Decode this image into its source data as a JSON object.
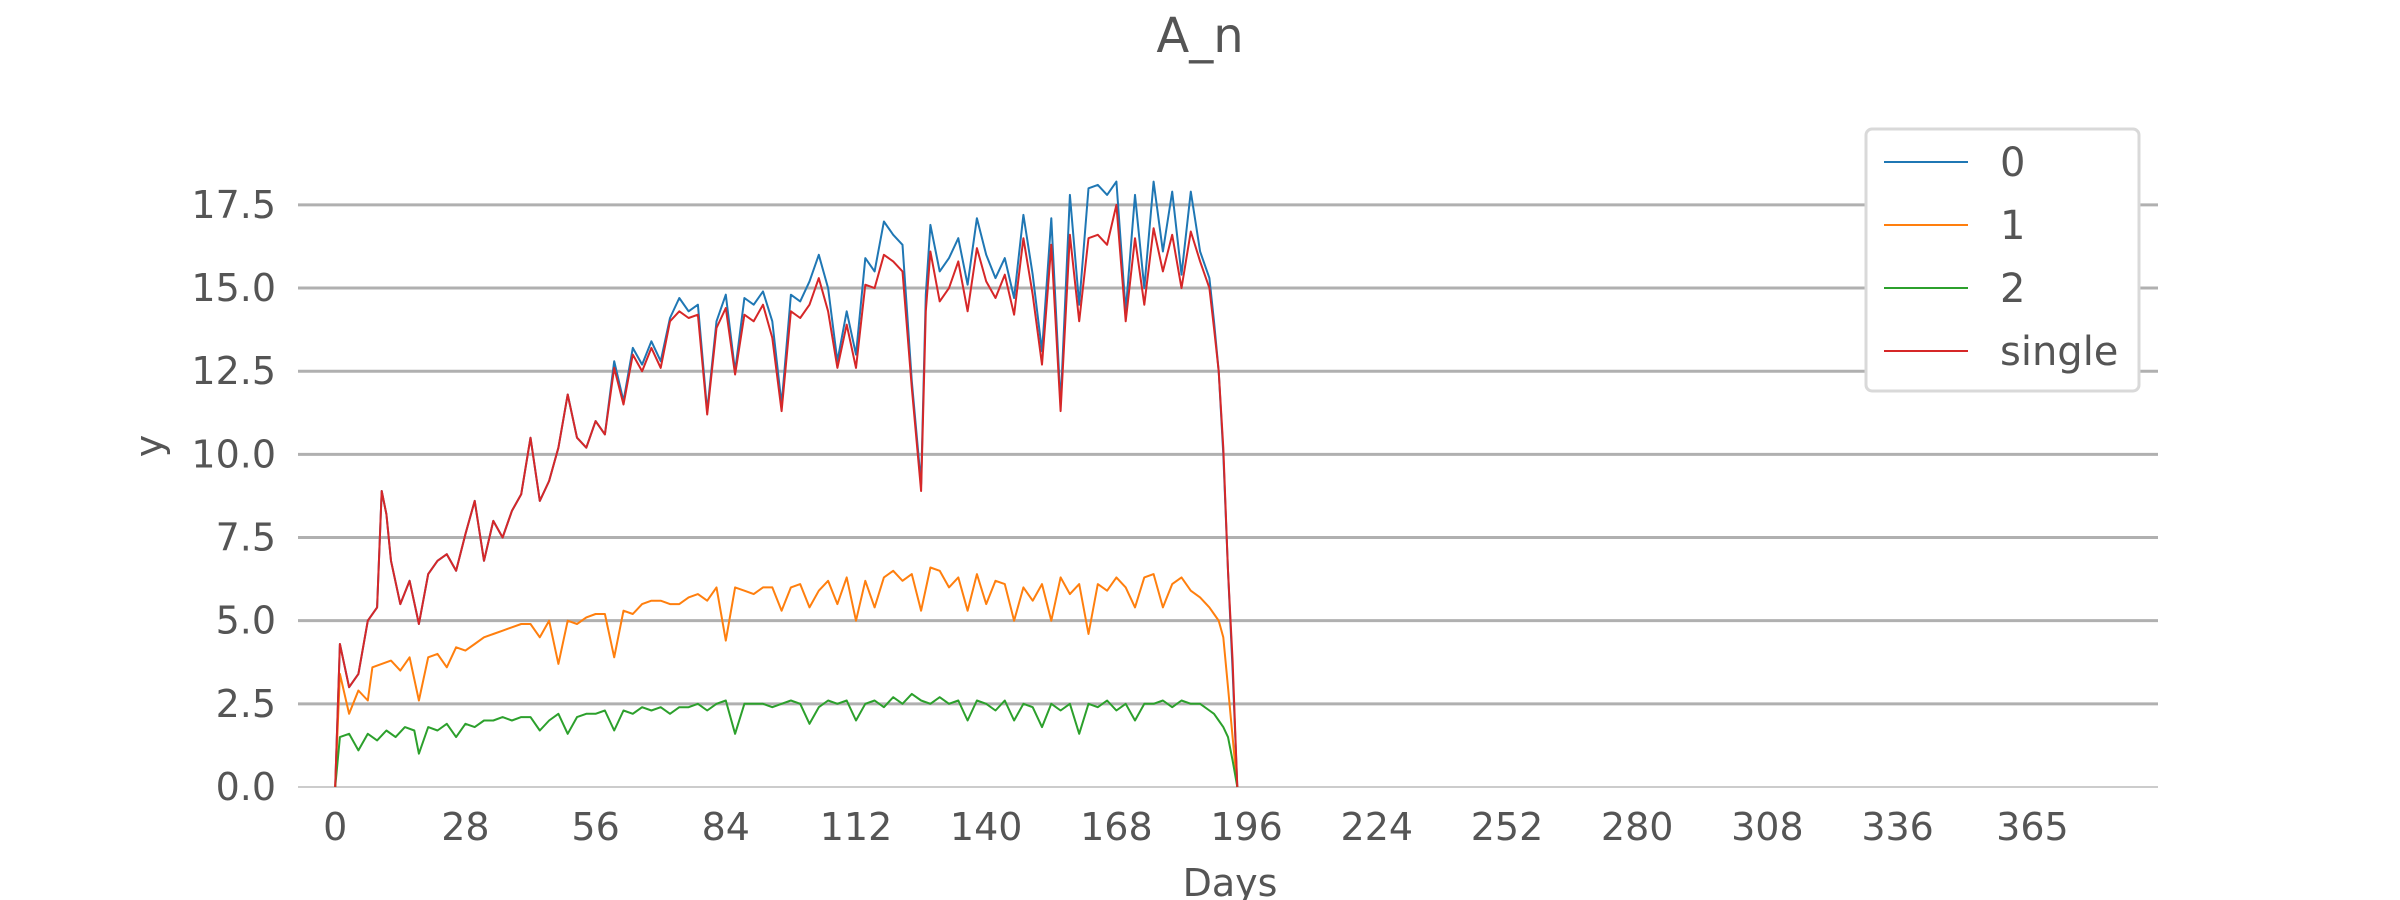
{
  "chart_data": {
    "type": "line",
    "title": "A_n",
    "xlabel": "Days",
    "ylabel": "y",
    "xlim": [
      -8,
      392
    ],
    "ylim": [
      0,
      19.0
    ],
    "x_ticks": [
      0,
      28,
      56,
      84,
      112,
      140,
      168,
      196,
      224,
      252,
      280,
      308,
      336,
      365
    ],
    "y_ticks": [
      0.0,
      2.5,
      5.0,
      7.5,
      10.0,
      12.5,
      15.0,
      17.5
    ],
    "y_tick_labels": [
      "0.0",
      "2.5",
      "5.0",
      "7.5",
      "10.0",
      "12.5",
      "15.0",
      "17.5"
    ],
    "grid": "horizontal",
    "legend_position": "top-right",
    "series": [
      {
        "name": "0",
        "color": "#1f77b4",
        "x": [
          0,
          1,
          3,
          5,
          7,
          9,
          10,
          11,
          12,
          14,
          16,
          18,
          20,
          22,
          24,
          26,
          28,
          30,
          32,
          34,
          36,
          38,
          40,
          42,
          44,
          46,
          48,
          50,
          52,
          54,
          56,
          58,
          60,
          62,
          64,
          66,
          68,
          70,
          72,
          74,
          76,
          78,
          80,
          82,
          84,
          86,
          88,
          90,
          92,
          94,
          96,
          98,
          100,
          102,
          104,
          106,
          108,
          110,
          112,
          114,
          116,
          118,
          120,
          122,
          124,
          126,
          127,
          128,
          130,
          132,
          134,
          136,
          138,
          140,
          142,
          144,
          146,
          148,
          150,
          152,
          154,
          156,
          158,
          160,
          162,
          164,
          166,
          168,
          170,
          172,
          174,
          176,
          178,
          180,
          182,
          184,
          186,
          188,
          189,
          190,
          191,
          192,
          193,
          194
        ],
        "y": [
          0,
          4.3,
          3.0,
          3.4,
          5.0,
          5.4,
          8.9,
          8.2,
          6.8,
          5.5,
          6.2,
          4.9,
          6.4,
          6.8,
          7.0,
          6.5,
          7.6,
          8.6,
          6.8,
          8.0,
          7.5,
          8.3,
          8.8,
          10.5,
          8.6,
          9.2,
          10.2,
          11.8,
          10.5,
          10.2,
          11.0,
          10.6,
          12.8,
          11.6,
          13.2,
          12.7,
          13.4,
          12.8,
          14.1,
          14.7,
          14.3,
          14.5,
          11.3,
          14.0,
          14.8,
          12.5,
          14.7,
          14.5,
          14.9,
          14.0,
          11.5,
          14.8,
          14.6,
          15.2,
          16.0,
          15.0,
          12.8,
          14.3,
          13.0,
          15.9,
          15.5,
          17.0,
          16.6,
          16.3,
          12.2,
          9.1,
          14.8,
          16.9,
          15.5,
          15.9,
          16.5,
          15.1,
          17.1,
          16.0,
          15.3,
          15.9,
          14.7,
          17.2,
          15.4,
          13.1,
          17.1,
          11.5,
          17.8,
          14.5,
          18.0,
          18.1,
          17.8,
          18.2,
          14.3,
          17.8,
          15.0,
          18.2,
          16.1,
          17.9,
          15.4,
          17.9,
          16.1,
          15.3,
          14.0,
          12.5,
          10.0,
          6.5,
          3.5,
          0
        ]
      },
      {
        "name": "1",
        "color": "#ff7f0e",
        "x": [
          0,
          1,
          3,
          5,
          7,
          8,
          10,
          12,
          14,
          16,
          18,
          20,
          22,
          24,
          26,
          28,
          30,
          32,
          34,
          36,
          38,
          40,
          42,
          44,
          46,
          48,
          50,
          52,
          54,
          56,
          58,
          60,
          62,
          64,
          66,
          68,
          70,
          72,
          74,
          76,
          78,
          80,
          82,
          84,
          86,
          88,
          90,
          92,
          94,
          96,
          98,
          100,
          102,
          104,
          106,
          108,
          110,
          112,
          114,
          116,
          118,
          120,
          122,
          124,
          126,
          128,
          130,
          132,
          134,
          136,
          138,
          140,
          142,
          144,
          146,
          148,
          150,
          152,
          154,
          156,
          158,
          160,
          162,
          164,
          166,
          168,
          170,
          172,
          174,
          176,
          178,
          180,
          182,
          184,
          186,
          188,
          189,
          190,
          191,
          192,
          193,
          194
        ],
        "y": [
          0,
          3.4,
          2.2,
          2.9,
          2.6,
          3.6,
          3.7,
          3.8,
          3.5,
          3.9,
          2.6,
          3.9,
          4.0,
          3.6,
          4.2,
          4.1,
          4.3,
          4.5,
          4.6,
          4.7,
          4.8,
          4.9,
          4.9,
          4.5,
          5.0,
          3.7,
          5.0,
          4.9,
          5.1,
          5.2,
          5.2,
          3.9,
          5.3,
          5.2,
          5.5,
          5.6,
          5.6,
          5.5,
          5.5,
          5.7,
          5.8,
          5.6,
          6.0,
          4.4,
          6.0,
          5.9,
          5.8,
          6.0,
          6.0,
          5.3,
          6.0,
          6.1,
          5.4,
          5.9,
          6.2,
          5.5,
          6.3,
          5.0,
          6.2,
          5.4,
          6.3,
          6.5,
          6.2,
          6.4,
          5.3,
          6.6,
          6.5,
          6.0,
          6.3,
          5.3,
          6.4,
          5.5,
          6.2,
          6.1,
          5.0,
          6.0,
          5.6,
          6.1,
          5.0,
          6.3,
          5.8,
          6.1,
          4.6,
          6.1,
          5.9,
          6.3,
          6.0,
          5.4,
          6.3,
          6.4,
          5.4,
          6.1,
          6.3,
          5.9,
          5.7,
          5.4,
          5.2,
          5.0,
          4.5,
          3.0,
          1.5,
          0
        ]
      },
      {
        "name": "2",
        "color": "#2ca02c",
        "x": [
          0,
          1,
          3,
          5,
          7,
          9,
          11,
          13,
          15,
          17,
          18,
          20,
          22,
          24,
          26,
          28,
          30,
          32,
          34,
          36,
          38,
          40,
          42,
          44,
          46,
          48,
          50,
          52,
          54,
          56,
          58,
          60,
          62,
          64,
          66,
          68,
          70,
          72,
          74,
          76,
          78,
          80,
          82,
          84,
          86,
          88,
          90,
          92,
          94,
          96,
          98,
          100,
          102,
          104,
          106,
          108,
          110,
          112,
          114,
          116,
          118,
          120,
          122,
          124,
          126,
          128,
          130,
          132,
          134,
          136,
          138,
          140,
          142,
          144,
          146,
          148,
          150,
          152,
          154,
          156,
          158,
          160,
          162,
          164,
          166,
          168,
          170,
          172,
          174,
          176,
          178,
          180,
          182,
          184,
          186,
          188,
          189,
          190,
          191,
          192,
          193,
          194
        ],
        "y": [
          0,
          1.5,
          1.6,
          1.1,
          1.6,
          1.4,
          1.7,
          1.5,
          1.8,
          1.7,
          1.0,
          1.8,
          1.7,
          1.9,
          1.5,
          1.9,
          1.8,
          2.0,
          2.0,
          2.1,
          2.0,
          2.1,
          2.1,
          1.7,
          2.0,
          2.2,
          1.6,
          2.1,
          2.2,
          2.2,
          2.3,
          1.7,
          2.3,
          2.2,
          2.4,
          2.3,
          2.4,
          2.2,
          2.4,
          2.4,
          2.5,
          2.3,
          2.5,
          2.6,
          1.6,
          2.5,
          2.5,
          2.5,
          2.4,
          2.5,
          2.6,
          2.5,
          1.9,
          2.4,
          2.6,
          2.5,
          2.6,
          2.0,
          2.5,
          2.6,
          2.4,
          2.7,
          2.5,
          2.8,
          2.6,
          2.5,
          2.7,
          2.5,
          2.6,
          2.0,
          2.6,
          2.5,
          2.3,
          2.6,
          2.0,
          2.5,
          2.4,
          1.8,
          2.5,
          2.3,
          2.5,
          1.6,
          2.5,
          2.4,
          2.6,
          2.3,
          2.5,
          2.0,
          2.5,
          2.5,
          2.6,
          2.4,
          2.6,
          2.5,
          2.5,
          2.3,
          2.2,
          2.0,
          1.8,
          1.5,
          0.8,
          0
        ]
      },
      {
        "name": "single",
        "color": "#d62728",
        "x": [
          0,
          1,
          3,
          5,
          7,
          9,
          10,
          11,
          12,
          14,
          16,
          18,
          20,
          22,
          24,
          26,
          28,
          30,
          32,
          34,
          36,
          38,
          40,
          42,
          44,
          46,
          48,
          50,
          52,
          54,
          56,
          58,
          60,
          62,
          64,
          66,
          68,
          70,
          72,
          74,
          76,
          78,
          80,
          82,
          84,
          86,
          88,
          90,
          92,
          94,
          96,
          98,
          100,
          102,
          104,
          106,
          108,
          110,
          112,
          114,
          116,
          118,
          120,
          122,
          124,
          126,
          127,
          128,
          130,
          132,
          134,
          136,
          138,
          140,
          142,
          144,
          146,
          148,
          150,
          152,
          154,
          156,
          158,
          160,
          162,
          164,
          166,
          168,
          170,
          172,
          174,
          176,
          178,
          180,
          182,
          184,
          186,
          188,
          189,
          190,
          191,
          192,
          193,
          194
        ],
        "y": [
          0,
          4.3,
          3.0,
          3.4,
          5.0,
          5.4,
          8.9,
          8.2,
          6.8,
          5.5,
          6.2,
          4.9,
          6.4,
          6.8,
          7.0,
          6.5,
          7.6,
          8.6,
          6.8,
          8.0,
          7.5,
          8.3,
          8.8,
          10.5,
          8.6,
          9.2,
          10.2,
          11.8,
          10.5,
          10.2,
          11.0,
          10.6,
          12.6,
          11.5,
          13.0,
          12.5,
          13.2,
          12.6,
          14.0,
          14.3,
          14.1,
          14.2,
          11.2,
          13.8,
          14.4,
          12.4,
          14.2,
          14.0,
          14.5,
          13.5,
          11.3,
          14.3,
          14.1,
          14.5,
          15.3,
          14.3,
          12.6,
          13.9,
          12.6,
          15.1,
          15.0,
          16.0,
          15.8,
          15.5,
          12.0,
          8.9,
          14.3,
          16.1,
          14.6,
          15.0,
          15.8,
          14.3,
          16.2,
          15.2,
          14.7,
          15.4,
          14.2,
          16.5,
          14.8,
          12.7,
          16.3,
          11.3,
          16.6,
          14.0,
          16.5,
          16.6,
          16.3,
          17.5,
          14.0,
          16.5,
          14.5,
          16.8,
          15.5,
          16.6,
          15.0,
          16.7,
          15.8,
          15.0,
          13.8,
          12.5,
          10.2,
          6.5,
          3.8,
          0
        ]
      }
    ]
  }
}
